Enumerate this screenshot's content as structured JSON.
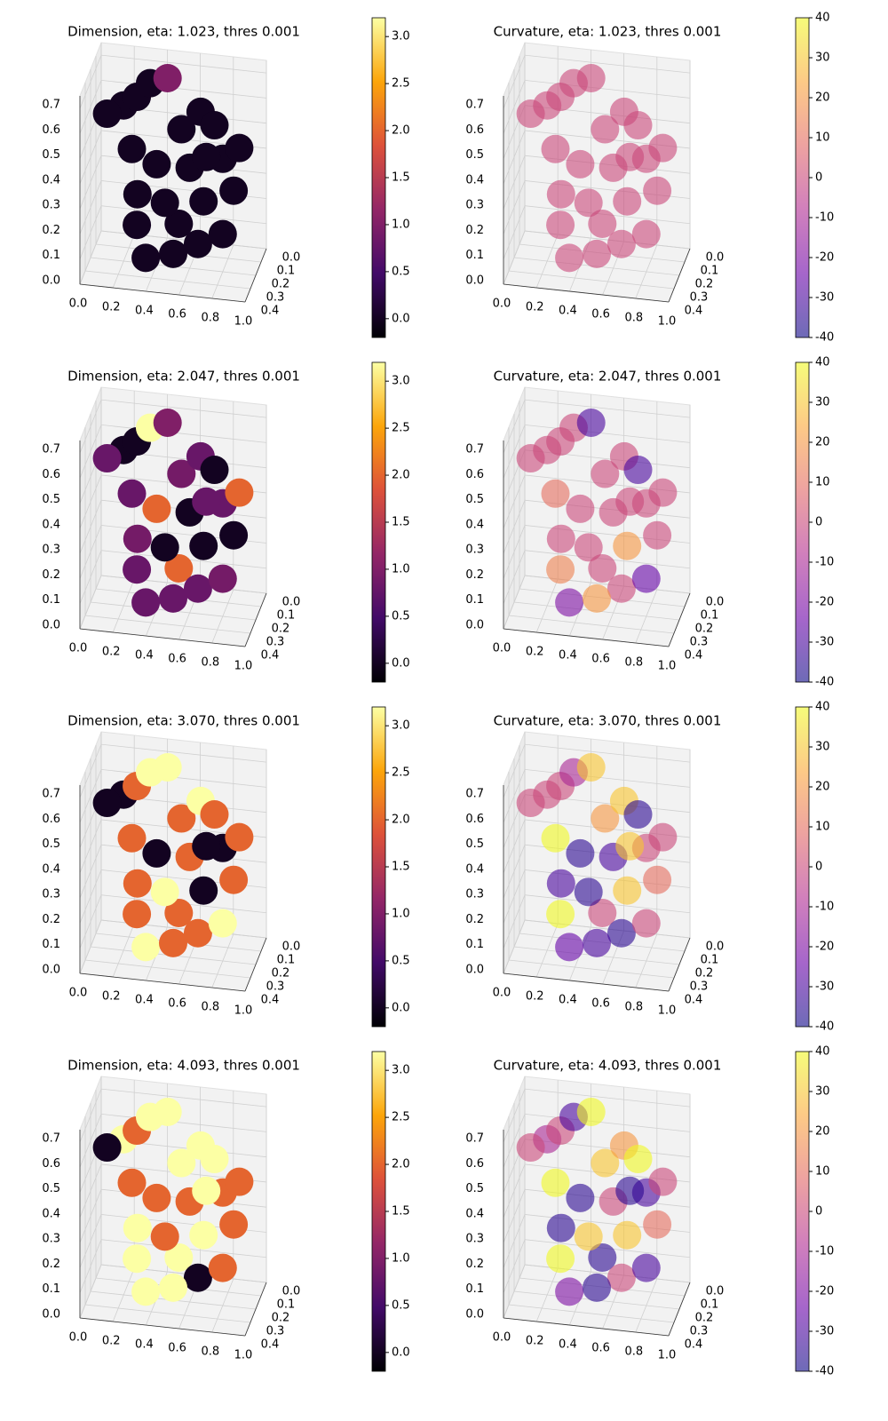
{
  "chart_data": [
    {
      "type": "scatter3d",
      "title": "Dimension, eta: 1.023, thres 0.001",
      "colormap": "inferno",
      "alpha": 1,
      "x": [
        0.2,
        0.28,
        0.36,
        0.1,
        0.45,
        0.25,
        0.3,
        0.28,
        0.35,
        0.4,
        0.55,
        0.65,
        0.75,
        0.8,
        0.6,
        0.7,
        0.55,
        0.65,
        0.8,
        0.85,
        0.5,
        0.9,
        0.45,
        0.7
      ],
      "y": [
        0.2,
        0.2,
        0.2,
        0.2,
        0.15,
        0.2,
        0.25,
        0.2,
        0.25,
        0.2,
        0.2,
        0.15,
        0.2,
        0.2,
        0.2,
        0.25,
        0.25,
        0.2,
        0.2,
        0.15,
        0.2,
        0.2,
        0.2,
        0.2
      ],
      "z": [
        0.62,
        0.66,
        0.72,
        0.58,
        0.72,
        0.45,
        0.3,
        0.15,
        0.05,
        0.4,
        0.55,
        0.6,
        0.58,
        0.45,
        0.4,
        0.3,
        0.2,
        0.1,
        0.15,
        0.3,
        0.05,
        0.5,
        0.25,
        0.45
      ],
      "values": [
        0,
        0,
        0,
        0,
        1,
        0,
        0,
        0,
        0,
        0,
        0,
        0,
        0,
        0,
        0,
        0,
        0,
        0,
        0,
        0,
        0,
        0,
        0,
        0
      ],
      "xlim": [
        0,
        1
      ],
      "xticks": [
        {
          "value": 0,
          "label": "0.0"
        },
        0.2,
        0.4,
        0.6,
        0.8,
        {
          "value": 1,
          "label": "1.0"
        }
      ],
      "ylim": [
        0,
        0.4
      ],
      "yticks": [
        {
          "value": 0,
          "label": "0.0"
        },
        0.1,
        0.2,
        0.3,
        0.4
      ],
      "zlim": [
        0,
        0.75
      ],
      "zticks": [
        {
          "value": 0,
          "label": "0.0"
        },
        0.1,
        0.2,
        0.3,
        0.4,
        0.5,
        0.6,
        0.7
      ],
      "clim": [
        -0.2,
        3.2
      ],
      "cticks": [
        {
          "value": 0,
          "label": "0.0"
        },
        0.5,
        {
          "value": 1,
          "label": "1.0"
        },
        1.5,
        {
          "value": 2,
          "label": "2.0"
        },
        2.5,
        {
          "value": 3,
          "label": "3.0"
        }
      ]
    },
    {
      "type": "scatter3d",
      "title": "Curvature, eta: 1.023, thres 0.001",
      "colormap": "plasma",
      "alpha": 0.6,
      "x": [
        0.2,
        0.28,
        0.36,
        0.1,
        0.45,
        0.25,
        0.3,
        0.28,
        0.35,
        0.4,
        0.55,
        0.65,
        0.75,
        0.8,
        0.6,
        0.7,
        0.55,
        0.65,
        0.8,
        0.85,
        0.5,
        0.9,
        0.45,
        0.7
      ],
      "y": [
        0.2,
        0.2,
        0.2,
        0.2,
        0.15,
        0.2,
        0.25,
        0.2,
        0.25,
        0.2,
        0.2,
        0.15,
        0.2,
        0.2,
        0.2,
        0.25,
        0.25,
        0.2,
        0.2,
        0.15,
        0.2,
        0.2,
        0.2,
        0.2
      ],
      "z": [
        0.62,
        0.66,
        0.72,
        0.58,
        0.72,
        0.45,
        0.3,
        0.15,
        0.05,
        0.4,
        0.55,
        0.6,
        0.58,
        0.45,
        0.4,
        0.3,
        0.2,
        0.1,
        0.15,
        0.3,
        0.05,
        0.5,
        0.25,
        0.45
      ],
      "values": [
        0,
        0,
        0,
        0,
        0,
        0,
        0,
        0,
        0,
        0,
        0,
        0,
        0,
        0,
        0,
        0,
        0,
        0,
        0,
        0,
        0,
        0,
        0,
        0
      ],
      "xlim": [
        0,
        1
      ],
      "xticks": [
        {
          "value": 0,
          "label": "0.0"
        },
        0.2,
        0.4,
        0.6,
        0.8,
        {
          "value": 1,
          "label": "1.0"
        }
      ],
      "ylim": [
        0,
        0.4
      ],
      "yticks": [
        {
          "value": 0,
          "label": "0.0"
        },
        0.1,
        0.2,
        0.3,
        0.4
      ],
      "zlim": [
        0,
        0.75
      ],
      "zticks": [
        {
          "value": 0,
          "label": "0.0"
        },
        0.1,
        0.2,
        0.3,
        0.4,
        0.5,
        0.6,
        0.7
      ],
      "clim": [
        -40,
        40
      ],
      "cticks": [
        -40,
        -30,
        -20,
        -10,
        0,
        10,
        20,
        30,
        40
      ]
    },
    {
      "type": "scatter3d",
      "title": "Dimension, eta: 2.047, thres 0.001",
      "colormap": "inferno",
      "alpha": 1,
      "x": [
        0.2,
        0.28,
        0.36,
        0.1,
        0.45,
        0.25,
        0.3,
        0.28,
        0.35,
        0.4,
        0.55,
        0.65,
        0.75,
        0.8,
        0.6,
        0.7,
        0.55,
        0.65,
        0.8,
        0.85,
        0.5,
        0.9,
        0.45,
        0.7
      ],
      "y": [
        0.2,
        0.2,
        0.2,
        0.2,
        0.15,
        0.2,
        0.25,
        0.2,
        0.25,
        0.2,
        0.2,
        0.15,
        0.2,
        0.2,
        0.2,
        0.25,
        0.25,
        0.2,
        0.2,
        0.15,
        0.2,
        0.2,
        0.2,
        0.2
      ],
      "z": [
        0.62,
        0.66,
        0.72,
        0.58,
        0.72,
        0.45,
        0.3,
        0.15,
        0.05,
        0.4,
        0.55,
        0.6,
        0.58,
        0.45,
        0.4,
        0.3,
        0.2,
        0.1,
        0.15,
        0.3,
        0.05,
        0.5,
        0.25,
        0.45
      ],
      "values": [
        0,
        0,
        3.2,
        0.8,
        1,
        0.8,
        0.9,
        0.8,
        0.8,
        2,
        0.9,
        0.8,
        0,
        0.8,
        0,
        0,
        2,
        0.8,
        0.9,
        0,
        0.8,
        2,
        0,
        0.8
      ],
      "xlim": [
        0,
        1
      ],
      "xticks": [
        {
          "value": 0,
          "label": "0.0"
        },
        0.2,
        0.4,
        0.6,
        0.8,
        {
          "value": 1,
          "label": "1.0"
        }
      ],
      "ylim": [
        0,
        0.4
      ],
      "yticks": [
        {
          "value": 0,
          "label": "0.0"
        },
        0.1,
        0.2,
        0.3,
        0.4
      ],
      "zlim": [
        0,
        0.75
      ],
      "zticks": [
        {
          "value": 0,
          "label": "0.0"
        },
        0.1,
        0.2,
        0.3,
        0.4,
        0.5,
        0.6,
        0.7
      ],
      "clim": [
        -0.2,
        3.2
      ],
      "cticks": [
        {
          "value": 0,
          "label": "0.0"
        },
        0.5,
        {
          "value": 1,
          "label": "1.0"
        },
        1.5,
        {
          "value": 2,
          "label": "2.0"
        },
        2.5,
        {
          "value": 3,
          "label": "3.0"
        }
      ]
    },
    {
      "type": "scatter3d",
      "title": "Curvature, eta: 2.047, thres 0.001",
      "colormap": "plasma",
      "alpha": 0.6,
      "x": [
        0.2,
        0.28,
        0.36,
        0.1,
        0.45,
        0.25,
        0.3,
        0.28,
        0.35,
        0.4,
        0.55,
        0.65,
        0.75,
        0.8,
        0.6,
        0.7,
        0.55,
        0.65,
        0.8,
        0.85,
        0.5,
        0.9,
        0.45,
        0.7
      ],
      "y": [
        0.2,
        0.2,
        0.2,
        0.2,
        0.15,
        0.2,
        0.25,
        0.2,
        0.25,
        0.2,
        0.2,
        0.15,
        0.2,
        0.2,
        0.2,
        0.25,
        0.25,
        0.2,
        0.2,
        0.15,
        0.2,
        0.2,
        0.2,
        0.2
      ],
      "z": [
        0.62,
        0.66,
        0.72,
        0.58,
        0.72,
        0.45,
        0.3,
        0.15,
        0.05,
        0.4,
        0.55,
        0.6,
        0.58,
        0.45,
        0.4,
        0.3,
        0.2,
        0.1,
        0.15,
        0.3,
        0.05,
        0.5,
        0.25,
        0.45
      ],
      "values": [
        0,
        0,
        0,
        0,
        -30,
        10,
        0,
        15,
        -20,
        0,
        0,
        0,
        -30,
        0,
        0,
        20,
        0,
        0,
        -25,
        0,
        20,
        0,
        0,
        0
      ],
      "xlim": [
        0,
        1
      ],
      "xticks": [
        {
          "value": 0,
          "label": "0.0"
        },
        0.2,
        0.4,
        0.6,
        0.8,
        {
          "value": 1,
          "label": "1.0"
        }
      ],
      "ylim": [
        0,
        0.4
      ],
      "yticks": [
        {
          "value": 0,
          "label": "0.0"
        },
        0.1,
        0.2,
        0.3,
        0.4
      ],
      "zlim": [
        0,
        0.75
      ],
      "zticks": [
        {
          "value": 0,
          "label": "0.0"
        },
        0.1,
        0.2,
        0.3,
        0.4,
        0.5,
        0.6,
        0.7
      ],
      "clim": [
        -40,
        40
      ],
      "cticks": [
        -40,
        -30,
        -20,
        -10,
        0,
        10,
        20,
        30,
        40
      ]
    },
    {
      "type": "scatter3d",
      "title": "Dimension, eta: 3.070, thres 0.001",
      "colormap": "inferno",
      "alpha": 1,
      "x": [
        0.2,
        0.28,
        0.36,
        0.1,
        0.45,
        0.25,
        0.3,
        0.28,
        0.35,
        0.4,
        0.55,
        0.65,
        0.75,
        0.8,
        0.6,
        0.7,
        0.55,
        0.65,
        0.8,
        0.85,
        0.5,
        0.9,
        0.45,
        0.7
      ],
      "y": [
        0.2,
        0.2,
        0.2,
        0.2,
        0.15,
        0.2,
        0.25,
        0.2,
        0.25,
        0.2,
        0.2,
        0.15,
        0.2,
        0.2,
        0.2,
        0.25,
        0.25,
        0.2,
        0.2,
        0.15,
        0.2,
        0.2,
        0.2,
        0.2
      ],
      "z": [
        0.62,
        0.66,
        0.72,
        0.58,
        0.72,
        0.45,
        0.3,
        0.15,
        0.05,
        0.4,
        0.55,
        0.6,
        0.58,
        0.45,
        0.4,
        0.3,
        0.2,
        0.1,
        0.15,
        0.3,
        0.05,
        0.5,
        0.25,
        0.45
      ],
      "values": [
        0,
        2,
        3.2,
        0,
        3.2,
        2,
        2,
        2,
        3.2,
        0,
        2,
        3.2,
        2,
        0,
        2,
        0,
        2,
        2,
        3.2,
        2,
        2,
        2,
        3.2,
        0
      ],
      "xlim": [
        0,
        1
      ],
      "xticks": [
        {
          "value": 0,
          "label": "0.0"
        },
        0.2,
        0.4,
        0.6,
        0.8,
        {
          "value": 1,
          "label": "1.0"
        }
      ],
      "ylim": [
        0,
        0.4
      ],
      "yticks": [
        {
          "value": 0,
          "label": "0.0"
        },
        0.1,
        0.2,
        0.3,
        0.4
      ],
      "zlim": [
        0,
        0.75
      ],
      "zticks": [
        {
          "value": 0,
          "label": "0.0"
        },
        0.1,
        0.2,
        0.3,
        0.4,
        0.5,
        0.6,
        0.7
      ],
      "clim": [
        -0.2,
        3.2
      ],
      "cticks": [
        {
          "value": 0,
          "label": "0.0"
        },
        0.5,
        {
          "value": 1,
          "label": "1.0"
        },
        1.5,
        {
          "value": 2,
          "label": "2.0"
        },
        2.5,
        {
          "value": 3,
          "label": "3.0"
        }
      ]
    },
    {
      "type": "scatter3d",
      "title": "Curvature, eta: 3.070, thres 0.001",
      "colormap": "plasma",
      "alpha": 0.6,
      "x": [
        0.2,
        0.28,
        0.36,
        0.1,
        0.45,
        0.25,
        0.3,
        0.28,
        0.35,
        0.4,
        0.55,
        0.65,
        0.75,
        0.8,
        0.6,
        0.7,
        0.55,
        0.65,
        0.8,
        0.85,
        0.5,
        0.9,
        0.45,
        0.7
      ],
      "y": [
        0.2,
        0.2,
        0.2,
        0.2,
        0.15,
        0.2,
        0.25,
        0.2,
        0.25,
        0.2,
        0.2,
        0.15,
        0.2,
        0.2,
        0.2,
        0.25,
        0.25,
        0.2,
        0.2,
        0.15,
        0.2,
        0.2,
        0.2,
        0.2
      ],
      "z": [
        0.62,
        0.66,
        0.72,
        0.58,
        0.72,
        0.45,
        0.3,
        0.15,
        0.05,
        0.4,
        0.55,
        0.6,
        0.58,
        0.45,
        0.4,
        0.3,
        0.2,
        0.1,
        0.15,
        0.3,
        0.05,
        0.5,
        0.25,
        0.45
      ],
      "values": [
        0,
        0,
        -10,
        0,
        30,
        40,
        -30,
        40,
        -25,
        -35,
        20,
        30,
        -35,
        0,
        -30,
        30,
        0,
        -35,
        0,
        10,
        -30,
        0,
        -35,
        30
      ],
      "xlim": [
        0,
        1
      ],
      "xticks": [
        {
          "value": 0,
          "label": "0.0"
        },
        0.2,
        0.4,
        0.6,
        0.8,
        {
          "value": 1,
          "label": "1.0"
        }
      ],
      "ylim": [
        0,
        0.4
      ],
      "yticks": [
        {
          "value": 0,
          "label": "0.0"
        },
        0.1,
        0.2,
        0.3,
        0.4
      ],
      "zlim": [
        0,
        0.75
      ],
      "zticks": [
        {
          "value": 0,
          "label": "0.0"
        },
        0.1,
        0.2,
        0.3,
        0.4,
        0.5,
        0.6,
        0.7
      ],
      "clim": [
        -40,
        40
      ],
      "cticks": [
        -40,
        -30,
        -20,
        -10,
        0,
        10,
        20,
        30,
        40
      ]
    },
    {
      "type": "scatter3d",
      "title": "Dimension, eta: 4.093, thres 0.001",
      "colormap": "inferno",
      "alpha": 1,
      "x": [
        0.2,
        0.28,
        0.36,
        0.1,
        0.45,
        0.25,
        0.3,
        0.28,
        0.35,
        0.4,
        0.55,
        0.65,
        0.75,
        0.8,
        0.6,
        0.7,
        0.55,
        0.65,
        0.8,
        0.85,
        0.5,
        0.9,
        0.45,
        0.7
      ],
      "y": [
        0.2,
        0.2,
        0.2,
        0.2,
        0.15,
        0.2,
        0.25,
        0.2,
        0.25,
        0.2,
        0.2,
        0.15,
        0.2,
        0.2,
        0.2,
        0.25,
        0.25,
        0.2,
        0.2,
        0.15,
        0.2,
        0.2,
        0.2,
        0.2
      ],
      "z": [
        0.62,
        0.66,
        0.72,
        0.58,
        0.72,
        0.45,
        0.3,
        0.15,
        0.05,
        0.4,
        0.55,
        0.6,
        0.58,
        0.45,
        0.4,
        0.3,
        0.2,
        0.1,
        0.15,
        0.3,
        0.05,
        0.5,
        0.25,
        0.45
      ],
      "values": [
        3.2,
        2,
        3.2,
        0,
        3.2,
        2,
        3.2,
        3.2,
        3.2,
        2,
        3.2,
        3.2,
        3.2,
        2,
        2,
        3.2,
        3.2,
        0,
        2,
        2,
        3.2,
        2,
        2,
        3.2
      ],
      "xlim": [
        0,
        1
      ],
      "xticks": [
        {
          "value": 0,
          "label": "0.0"
        },
        0.2,
        0.4,
        0.6,
        0.8,
        {
          "value": 1,
          "label": "1.0"
        }
      ],
      "ylim": [
        0,
        0.4
      ],
      "yticks": [
        {
          "value": 0,
          "label": "0.0"
        },
        0.1,
        0.2,
        0.3,
        0.4
      ],
      "zlim": [
        0,
        0.75
      ],
      "zticks": [
        {
          "value": 0,
          "label": "0.0"
        },
        0.1,
        0.2,
        0.3,
        0.4,
        0.5,
        0.6,
        0.7
      ],
      "clim": [
        -0.2,
        3.2
      ],
      "cticks": [
        {
          "value": 0,
          "label": "0.0"
        },
        0.5,
        {
          "value": 1,
          "label": "1.0"
        },
        1.5,
        {
          "value": 2,
          "label": "2.0"
        },
        2.5,
        {
          "value": 3,
          "label": "3.0"
        }
      ]
    },
    {
      "type": "scatter3d",
      "title": "Curvature, eta: 4.093, thres 0.001",
      "colormap": "plasma",
      "alpha": 0.6,
      "x": [
        0.2,
        0.28,
        0.36,
        0.1,
        0.45,
        0.25,
        0.3,
        0.28,
        0.35,
        0.4,
        0.55,
        0.65,
        0.75,
        0.8,
        0.6,
        0.7,
        0.55,
        0.65,
        0.8,
        0.85,
        0.5,
        0.9,
        0.45,
        0.7
      ],
      "y": [
        0.2,
        0.2,
        0.2,
        0.2,
        0.15,
        0.2,
        0.25,
        0.2,
        0.25,
        0.2,
        0.2,
        0.15,
        0.2,
        0.2,
        0.2,
        0.25,
        0.25,
        0.2,
        0.2,
        0.15,
        0.2,
        0.2,
        0.2,
        0.2
      ],
      "z": [
        0.62,
        0.66,
        0.72,
        0.58,
        0.72,
        0.45,
        0.3,
        0.15,
        0.05,
        0.4,
        0.55,
        0.6,
        0.58,
        0.45,
        0.4,
        0.3,
        0.2,
        0.1,
        0.15,
        0.3,
        0.05,
        0.5,
        0.25,
        0.45
      ],
      "values": [
        -10,
        0,
        -30,
        0,
        40,
        40,
        -35,
        40,
        -20,
        -35,
        30,
        20,
        40,
        -30,
        0,
        30,
        -35,
        0,
        -30,
        10,
        -35,
        0,
        30,
        -35
      ],
      "xlim": [
        0,
        1
      ],
      "xticks": [
        {
          "value": 0,
          "label": "0.0"
        },
        0.2,
        0.4,
        0.6,
        0.8,
        {
          "value": 1,
          "label": "1.0"
        }
      ],
      "ylim": [
        0,
        0.4
      ],
      "yticks": [
        {
          "value": 0,
          "label": "0.0"
        },
        0.1,
        0.2,
        0.3,
        0.4
      ],
      "zlim": [
        0,
        0.75
      ],
      "zticks": [
        {
          "value": 0,
          "label": "0.0"
        },
        0.1,
        0.2,
        0.3,
        0.4,
        0.5,
        0.6,
        0.7
      ],
      "clim": [
        -40,
        40
      ],
      "cticks": [
        -40,
        -30,
        -20,
        -10,
        0,
        10,
        20,
        30,
        40
      ]
    }
  ]
}
